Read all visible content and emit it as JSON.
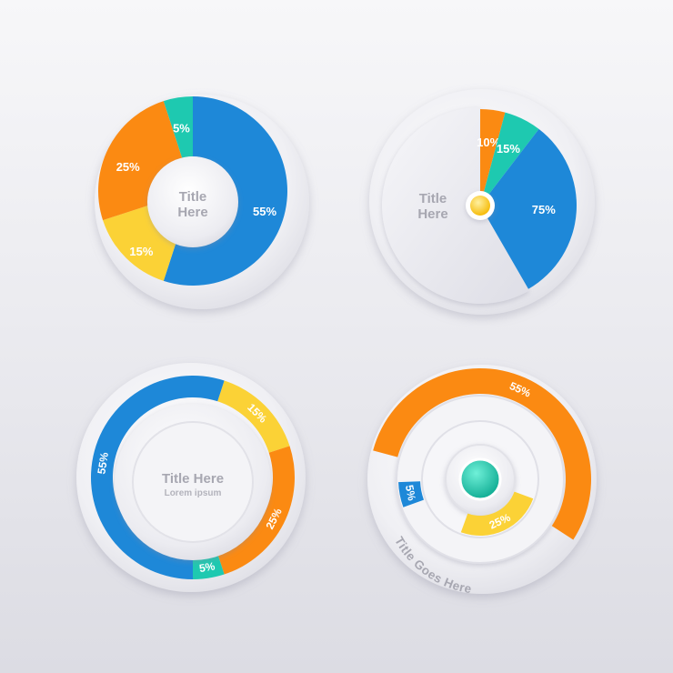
{
  "colors": {
    "blue": "#1e88d8",
    "teal": "#1ec9b0",
    "orange": "#fb8a12",
    "yellow": "#fbd236",
    "title_text": "#a7a7b1",
    "label_text": "#ffffff",
    "center_dot_yellow": "#f8c619",
    "center_dot_teal": "#14c4a8"
  },
  "chart_data": [
    {
      "type": "pie",
      "style": "donut",
      "center_title": [
        "Title",
        "Here"
      ],
      "slices": [
        {
          "label": "55%",
          "value": 55,
          "color": "blue"
        },
        {
          "label": "15%",
          "value": 15,
          "color": "yellow"
        },
        {
          "label": "25%",
          "value": 25,
          "color": "orange"
        },
        {
          "label": "5%",
          "value": 5,
          "color": "teal"
        }
      ]
    },
    {
      "type": "pie",
      "style": "partial-pie",
      "center_title": [
        "Title",
        "Here"
      ],
      "slices": [
        {
          "label": "10%",
          "value": 10,
          "color": "orange"
        },
        {
          "label": "15%",
          "value": 15,
          "color": "teal"
        },
        {
          "label": "75%",
          "value": 75,
          "color": "blue"
        }
      ]
    },
    {
      "type": "pie",
      "style": "ring",
      "center_title": [
        "Title Here"
      ],
      "center_subtitle": "Lorem ipsum",
      "slices": [
        {
          "label": "15%",
          "value": 15,
          "color": "yellow"
        },
        {
          "label": "25%",
          "value": 25,
          "color": "orange"
        },
        {
          "label": "5%",
          "value": 5,
          "color": "teal"
        },
        {
          "label": "55%",
          "value": 55,
          "color": "blue"
        }
      ]
    },
    {
      "type": "pie",
      "style": "concentric-arcs",
      "title": "Title Goes Here",
      "arcs": [
        {
          "label": "55%",
          "value": 55,
          "color": "orange"
        },
        {
          "label": "5%",
          "value": 5,
          "color": "blue"
        },
        {
          "label": "25%",
          "value": 25,
          "color": "yellow"
        }
      ]
    }
  ]
}
